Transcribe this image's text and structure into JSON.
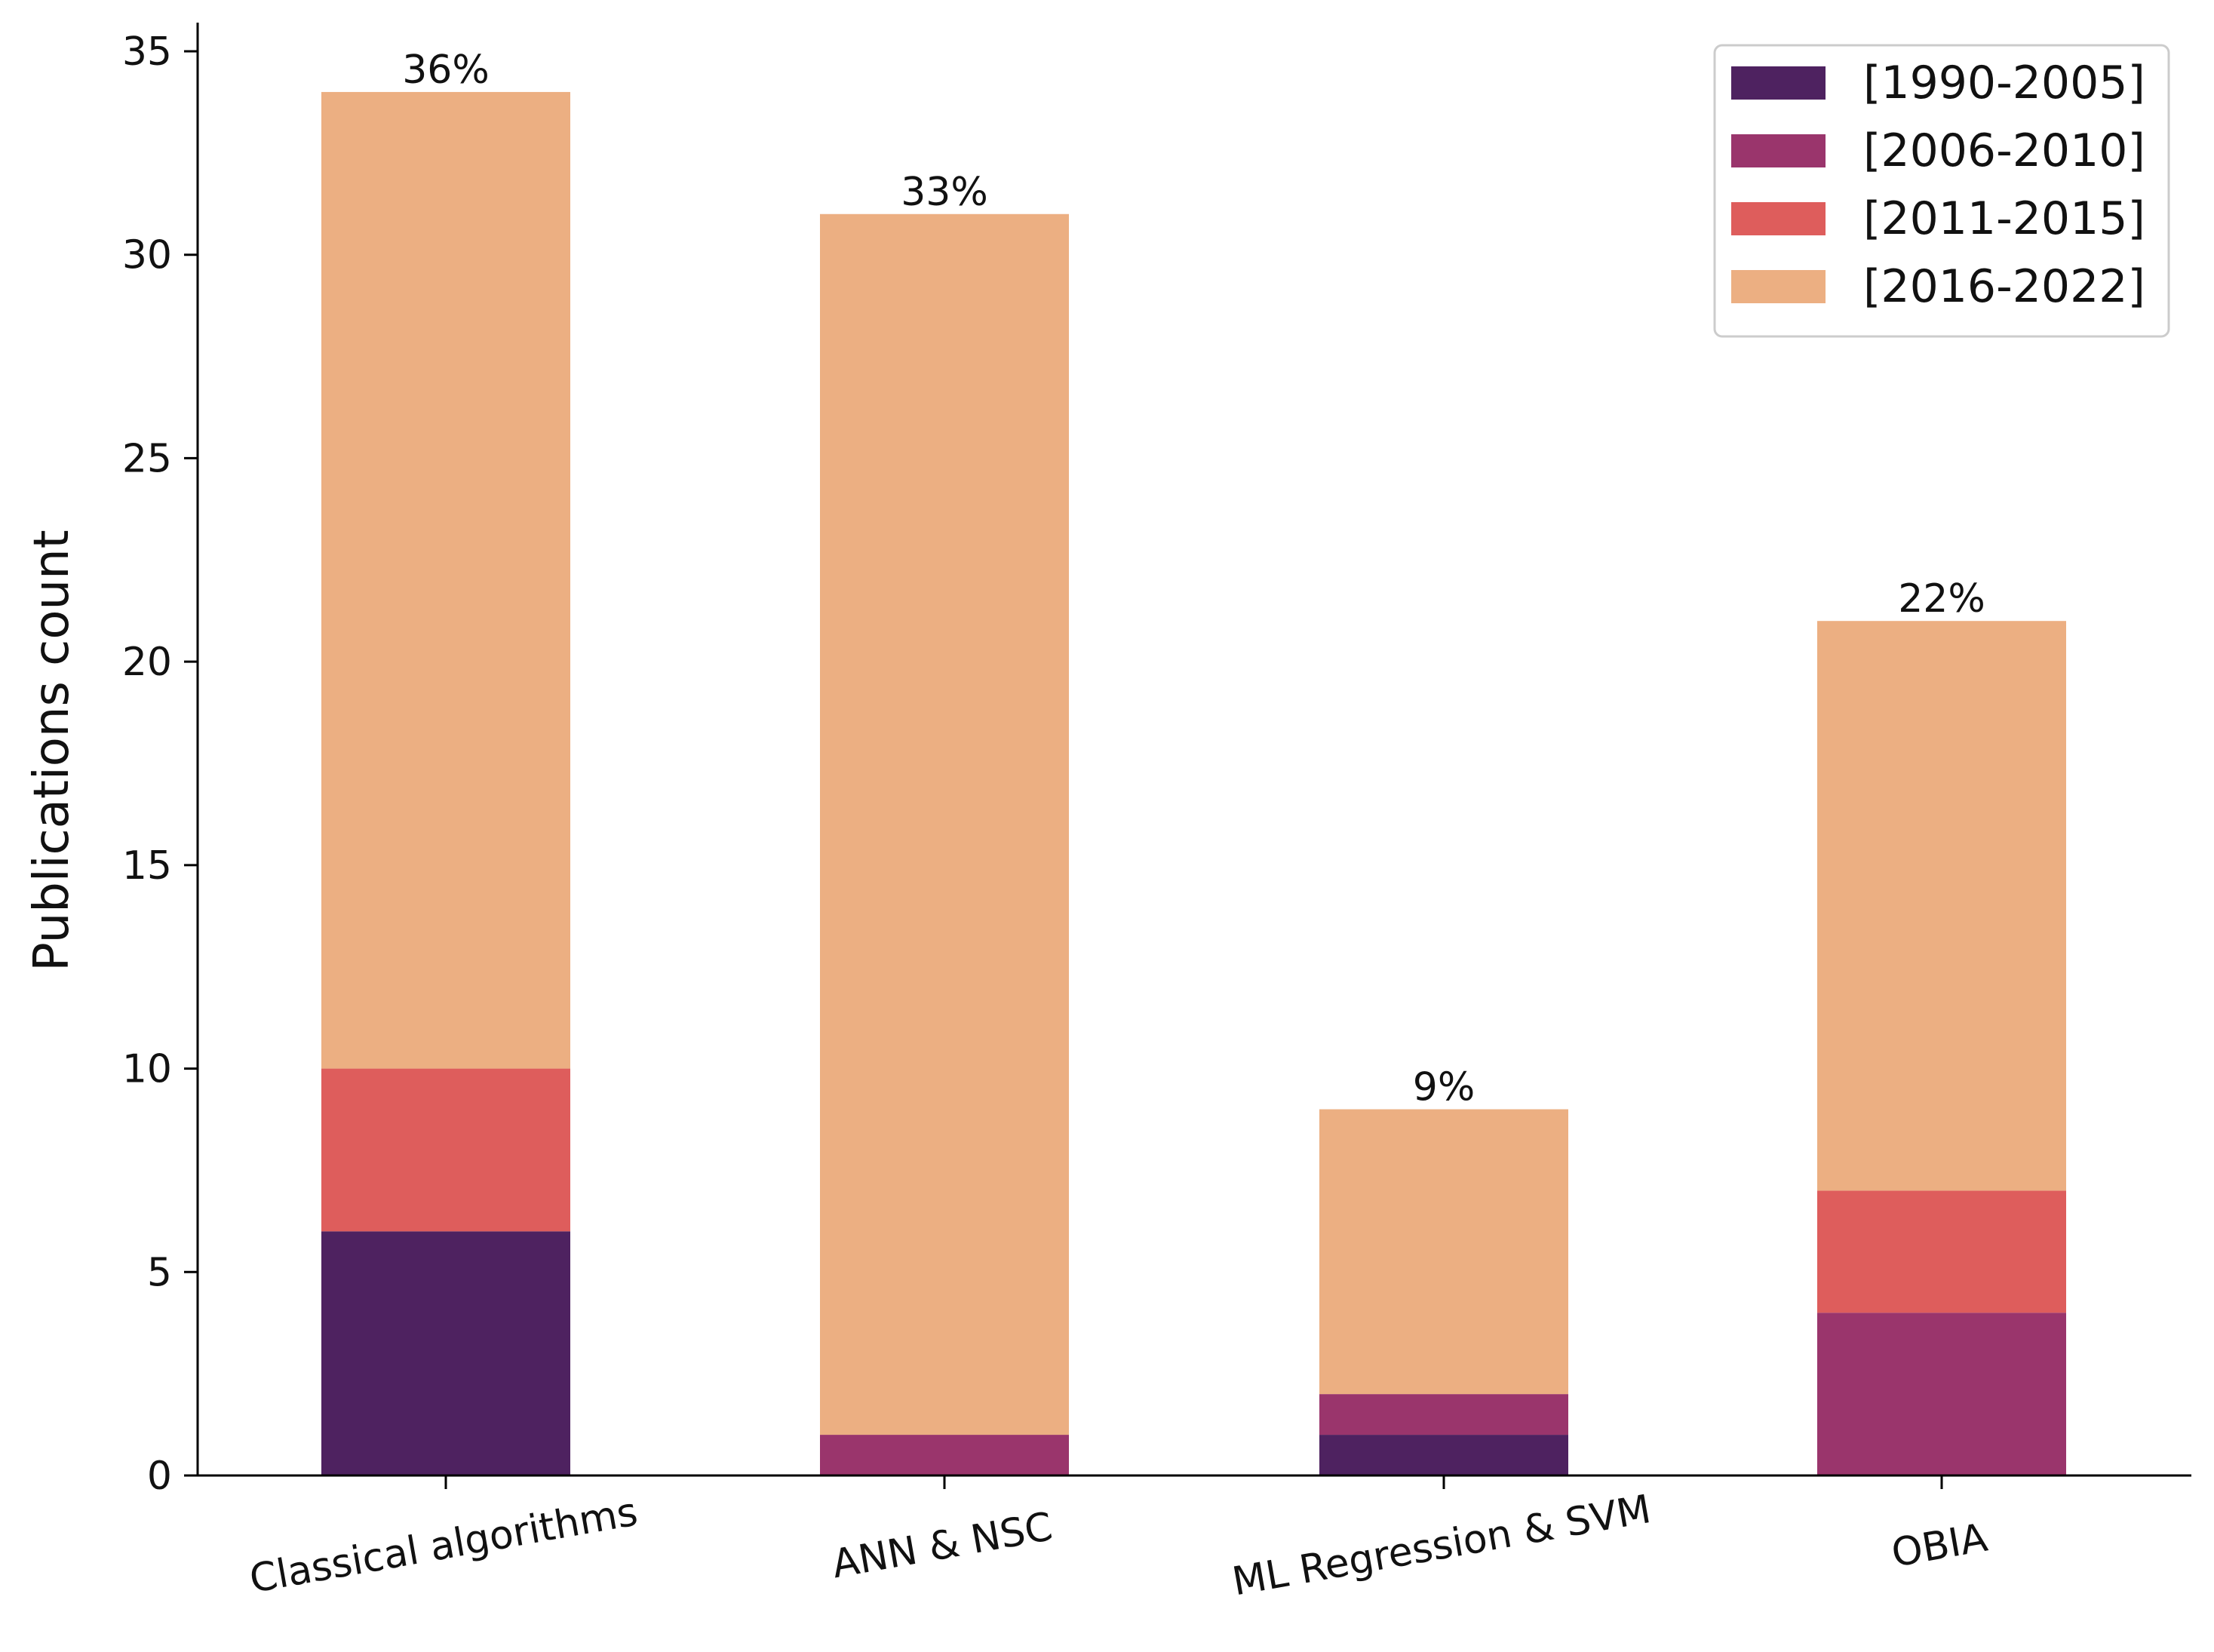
{
  "chart_data": {
    "type": "bar",
    "stacked": true,
    "title": "",
    "xlabel": "",
    "ylabel": "Publications count",
    "ylim": [
      0,
      35
    ],
    "yticks": [
      0,
      5,
      10,
      15,
      20,
      25,
      30,
      35
    ],
    "grid": false,
    "legend_position": "top-right",
    "categories": [
      "Classical algorithms",
      "ANN & NSC",
      "ML Regression & SVM",
      "OBIA"
    ],
    "series": [
      {
        "name": "[1990-2005]",
        "color": "#4e2260",
        "values": [
          6,
          0,
          1,
          0
        ]
      },
      {
        "name": "[2006-2010]",
        "color": "#9a356c",
        "values": [
          0,
          1,
          1,
          4
        ]
      },
      {
        "name": "[2011-2015]",
        "color": "#de5d5c",
        "values": [
          4,
          0,
          0,
          3
        ]
      },
      {
        "name": "[2016-2022]",
        "color": "#ecaf82",
        "values": [
          24,
          30,
          7,
          14
        ]
      }
    ],
    "bar_labels": [
      "36%",
      "33%",
      "9%",
      "22%"
    ]
  }
}
